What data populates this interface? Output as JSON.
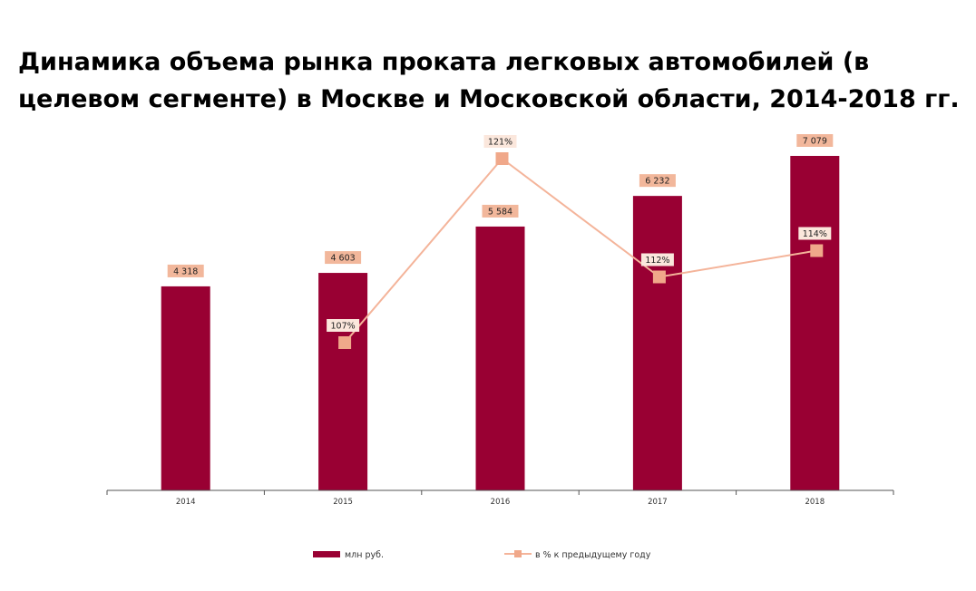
{
  "chart_data": {
    "type": "bar",
    "title": "Динамика объема рынка проката легковых автомобилей (в целевом сегменте) в Москве и Московской области, 2014-2018 гг.",
    "categories": [
      "2014",
      "2015",
      "2016",
      "2017",
      "2018"
    ],
    "series": [
      {
        "name": "млн руб.",
        "type": "bar",
        "values": [
          4318,
          4603,
          5584,
          6232,
          7079
        ],
        "labels": [
          "4 318",
          "4 603",
          "5 584",
          "6 232",
          "7 079"
        ],
        "color": "#990033"
      },
      {
        "name": "в % к предыдущему году",
        "type": "line",
        "values": [
          null,
          107,
          121,
          112,
          114
        ],
        "labels": [
          "",
          "107%",
          "121%",
          "112%",
          "114%"
        ],
        "color": "#f4b49a"
      }
    ],
    "ylim_bar": [
      0,
      7500
    ],
    "ylim_line": [
      100,
      123
    ],
    "grid": false,
    "legend_position": "bottom"
  }
}
